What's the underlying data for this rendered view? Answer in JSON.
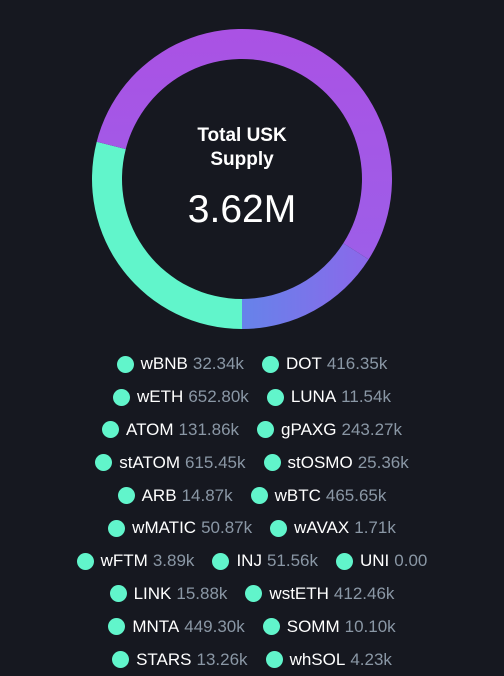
{
  "chart_data": {
    "type": "pie",
    "title": "Total USK Supply",
    "title_lines": [
      "Total USK",
      "Supply"
    ],
    "total": "3.62M",
    "colors": {
      "segment_teal": "#61f5cb",
      "segment_blue": "#6b7fe8",
      "segment_purple": "#a455e6",
      "legend_dot": "#61f5cb",
      "legend_value": "#8a97a5",
      "background": "#161820"
    },
    "slices": [
      {
        "portion": 0.29,
        "color": "#61f5cb"
      },
      {
        "portion": 0.16,
        "color": "#6b7fe8"
      },
      {
        "portion": 0.55,
        "color": "#a455e6"
      }
    ],
    "legend_rows": [
      [
        {
          "name": "wBNB",
          "value": "32.34k"
        },
        {
          "name": "DOT",
          "value": "416.35k"
        }
      ],
      [
        {
          "name": "wETH",
          "value": "652.80k"
        },
        {
          "name": "LUNA",
          "value": "11.54k"
        }
      ],
      [
        {
          "name": "ATOM",
          "value": "131.86k"
        },
        {
          "name": "gPAXG",
          "value": "243.27k"
        }
      ],
      [
        {
          "name": "stATOM",
          "value": "615.45k"
        },
        {
          "name": "stOSMO",
          "value": "25.36k"
        }
      ],
      [
        {
          "name": "ARB",
          "value": "14.87k"
        },
        {
          "name": "wBTC",
          "value": "465.65k"
        }
      ],
      [
        {
          "name": "wMATIC",
          "value": "50.87k"
        },
        {
          "name": "wAVAX",
          "value": "1.71k"
        }
      ],
      [
        {
          "name": "wFTM",
          "value": "3.89k"
        },
        {
          "name": "INJ",
          "value": "51.56k"
        },
        {
          "name": "UNI",
          "value": "0.00"
        }
      ],
      [
        {
          "name": "LINK",
          "value": "15.88k"
        },
        {
          "name": "wstETH",
          "value": "412.46k"
        }
      ],
      [
        {
          "name": "MNTA",
          "value": "449.30k"
        },
        {
          "name": "SOMM",
          "value": "10.10k"
        }
      ],
      [
        {
          "name": "STARS",
          "value": "13.26k"
        },
        {
          "name": "whSOL",
          "value": "4.23k"
        }
      ]
    ]
  }
}
